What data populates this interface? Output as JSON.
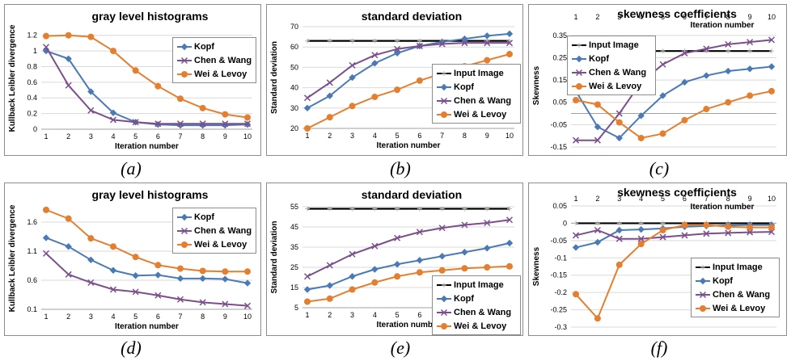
{
  "captions": [
    "(a)",
    "(b)",
    "(c)",
    "(d)",
    "(e)",
    "(f)"
  ],
  "legend_colors": {
    "Input Image": "#000000",
    "Kopf": "#4a7ab5",
    "Chen & Wang": "#7a4f8c",
    "Wei & Levoy": "#e57f30"
  },
  "chart_data": [
    {
      "type": "line",
      "title": "gray level histograms",
      "xlabel": "Iteration number",
      "ylabel": "Kullback Leibler divergence",
      "x": [
        1,
        2,
        3,
        4,
        5,
        6,
        7,
        8,
        9,
        10
      ],
      "ylim": [
        0,
        1.3
      ],
      "yticks": [
        "0",
        "0.2",
        "0.4",
        "0.6",
        "0.8",
        "1",
        "1.2"
      ],
      "legend": "right",
      "series": [
        {
          "name": "Kopf",
          "values": [
            1.0,
            0.9,
            0.48,
            0.21,
            0.09,
            0.06,
            0.05,
            0.05,
            0.05,
            0.06
          ]
        },
        {
          "name": "Chen & Wang",
          "values": [
            1.05,
            0.56,
            0.24,
            0.12,
            0.09,
            0.07,
            0.07,
            0.07,
            0.07,
            0.07
          ]
        },
        {
          "name": "Wei & Levoy",
          "values": [
            1.19,
            1.2,
            1.18,
            1.0,
            0.75,
            0.55,
            0.39,
            0.27,
            0.19,
            0.15
          ]
        }
      ]
    },
    {
      "type": "line",
      "title": "standard deviation",
      "xlabel": "Iteration number",
      "ylabel": "Standard deviation",
      "x": [
        1,
        2,
        3,
        4,
        5,
        6,
        7,
        8,
        9,
        10
      ],
      "ylim": [
        20,
        70
      ],
      "yticks": [
        "20",
        "30",
        "40",
        "50",
        "60",
        "70"
      ],
      "legend": "right",
      "series": [
        {
          "name": "Input Image",
          "values": [
            63,
            63,
            63,
            63,
            63,
            63,
            63,
            63,
            63,
            63
          ]
        },
        {
          "name": "Kopf",
          "values": [
            30,
            36,
            45,
            52,
            57,
            60.5,
            62.5,
            64,
            65.5,
            66.5
          ]
        },
        {
          "name": "Chen & Wang",
          "values": [
            35,
            42.5,
            51,
            56,
            59,
            60.5,
            61.5,
            62,
            62,
            62
          ]
        },
        {
          "name": "Wei & Levoy",
          "values": [
            20,
            25.5,
            31,
            35.5,
            39,
            43.5,
            47,
            50.5,
            53.5,
            56.5
          ]
        }
      ]
    },
    {
      "type": "line",
      "title": "skewness coefficients",
      "xlabel": "Iteration number",
      "ylabel": "Skewness",
      "x": [
        1,
        2,
        3,
        4,
        5,
        6,
        7,
        8,
        9,
        10
      ],
      "ylim": [
        -0.15,
        0.4
      ],
      "yticks": [
        "-0.15",
        "-0.05",
        "0.05",
        "0.15",
        "0.25",
        "0.35"
      ],
      "legend": "top-left",
      "series": [
        {
          "name": "Input Image",
          "values": [
            0.28,
            0.28,
            0.28,
            0.28,
            0.28,
            0.28,
            0.28,
            0.28,
            0.28,
            0.28
          ]
        },
        {
          "name": "Kopf",
          "values": [
            0.1,
            -0.06,
            -0.11,
            -0.01,
            0.08,
            0.14,
            0.17,
            0.19,
            0.2,
            0.21
          ]
        },
        {
          "name": "Chen & Wang",
          "values": [
            -0.12,
            -0.12,
            0.0,
            0.14,
            0.22,
            0.27,
            0.29,
            0.31,
            0.32,
            0.33
          ]
        },
        {
          "name": "Wei & Levoy",
          "values": [
            0.06,
            0.04,
            -0.04,
            -0.11,
            -0.09,
            -0.03,
            0.02,
            0.05,
            0.08,
            0.1
          ]
        }
      ]
    },
    {
      "type": "line",
      "title": "gray level histograms",
      "xlabel": "Iteration number",
      "ylabel": "Kullback Leibler divergence",
      "x": [
        1,
        2,
        3,
        4,
        5,
        6,
        7,
        8,
        9,
        10
      ],
      "ylim": [
        0.1,
        1.85
      ],
      "yticks": [
        "0.1",
        "0.6",
        "1.1",
        "1.6"
      ],
      "legend": "right",
      "series": [
        {
          "name": "Kopf",
          "values": [
            1.33,
            1.18,
            0.95,
            0.77,
            0.68,
            0.69,
            0.63,
            0.63,
            0.62,
            0.55
          ]
        },
        {
          "name": "Chen & Wang",
          "values": [
            1.06,
            0.7,
            0.56,
            0.44,
            0.4,
            0.34,
            0.27,
            0.22,
            0.19,
            0.16
          ]
        },
        {
          "name": "Wei & Levoy",
          "values": [
            1.81,
            1.66,
            1.32,
            1.18,
            1.0,
            0.86,
            0.8,
            0.76,
            0.75,
            0.75
          ]
        }
      ]
    },
    {
      "type": "line",
      "title": "standard deviation",
      "xlabel": "Iteration number",
      "ylabel": "Standard deviation",
      "x": [
        1,
        2,
        3,
        4,
        5,
        6,
        7,
        8,
        9,
        10
      ],
      "ylim": [
        5,
        55
      ],
      "yticks": [
        "5",
        "15",
        "25",
        "35",
        "45",
        "55"
      ],
      "legend": "bottom-right",
      "series": [
        {
          "name": "Input Image",
          "values": [
            54,
            54,
            54,
            54,
            54,
            54,
            54,
            54,
            54,
            54
          ]
        },
        {
          "name": "Kopf",
          "values": [
            14,
            16,
            20.5,
            24,
            26.5,
            28.5,
            30.5,
            32.5,
            34.5,
            37
          ]
        },
        {
          "name": "Chen & Wang",
          "values": [
            20.5,
            26,
            31.5,
            35.5,
            39.5,
            42.5,
            44.5,
            46,
            47,
            48.5
          ]
        },
        {
          "name": "Wei & Levoy",
          "values": [
            8,
            9.5,
            14,
            17.5,
            20.5,
            22.5,
            23.5,
            24.5,
            25,
            25.5
          ]
        }
      ]
    },
    {
      "type": "line",
      "title": "skewness coefficients",
      "xlabel": "Iteration number",
      "ylabel": "Skewness",
      "x": [
        1,
        2,
        3,
        4,
        5,
        6,
        7,
        8,
        9,
        10
      ],
      "ylim": [
        -0.3,
        0.05
      ],
      "yticks": [
        "-0.3",
        "-0.25",
        "-0.2",
        "-0.15",
        "-0.1",
        "-0.05",
        "0",
        "0.05"
      ],
      "legend": "bottom-right",
      "series": [
        {
          "name": "Input Image",
          "values": [
            0,
            0,
            0,
            0,
            0,
            0,
            0,
            0,
            0,
            0
          ]
        },
        {
          "name": "Kopf",
          "values": [
            -0.07,
            -0.055,
            -0.02,
            -0.018,
            -0.015,
            -0.01,
            -0.008,
            -0.006,
            -0.005,
            -0.005
          ]
        },
        {
          "name": "Chen & Wang",
          "values": [
            -0.035,
            -0.02,
            -0.045,
            -0.045,
            -0.04,
            -0.035,
            -0.03,
            -0.028,
            -0.026,
            -0.025
          ]
        },
        {
          "name": "Wei & Levoy",
          "values": [
            -0.205,
            -0.275,
            -0.12,
            -0.06,
            -0.02,
            -0.005,
            -0.005,
            -0.01,
            -0.012,
            -0.012
          ]
        }
      ]
    }
  ]
}
